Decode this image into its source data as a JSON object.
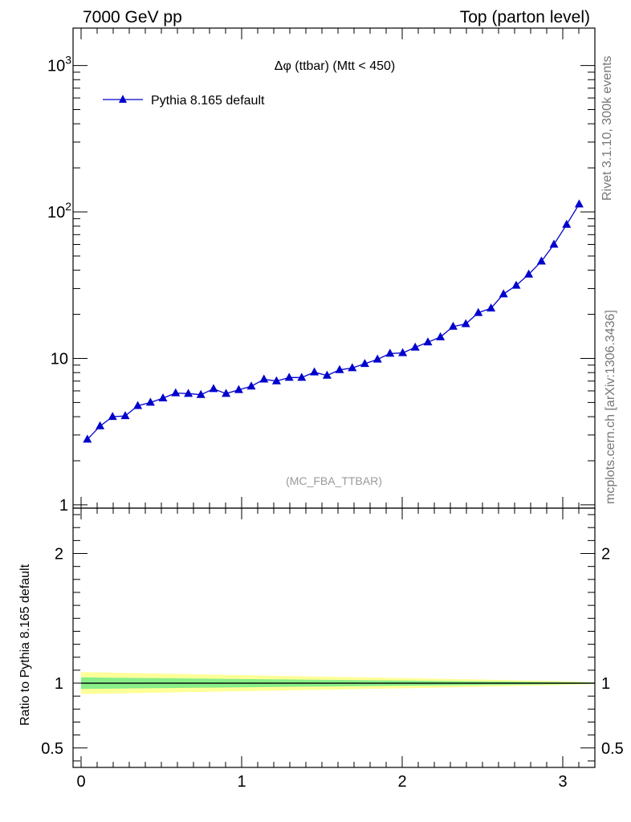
{
  "header": {
    "left": "7000 GeV pp",
    "right": "Top (parton level)"
  },
  "side_labels": {
    "rivet": "Rivet 3.1.10,  300k events",
    "mcplots": "mcplots.cern.ch [arXiv:1306.3436]"
  },
  "chart_data": {
    "type": "line",
    "title": "Δφ (ttbar) (Mtt < 450)",
    "analysis_label": "(MC_FBA_TTBAR)",
    "legend": {
      "label": "Pythia 8.165 default",
      "placement": "top-left"
    },
    "log_y": true,
    "xlim": [
      -0.05,
      3.2
    ],
    "ylim": [
      0.95,
      1800
    ],
    "y_ticks": [
      "1",
      "10",
      "10^2",
      "10^3"
    ],
    "x_ticks": [
      "0",
      "1",
      "2",
      "3"
    ],
    "color": "#0000cc",
    "series": [
      {
        "name": "Pythia 8.165 default",
        "x": [
          0.039,
          0.118,
          0.196,
          0.275,
          0.353,
          0.432,
          0.51,
          0.589,
          0.668,
          0.746,
          0.825,
          0.903,
          0.982,
          1.06,
          1.139,
          1.217,
          1.296,
          1.374,
          1.453,
          1.532,
          1.61,
          1.689,
          1.767,
          1.846,
          1.924,
          2.003,
          2.081,
          2.16,
          2.238,
          2.317,
          2.396,
          2.474,
          2.553,
          2.631,
          2.71,
          2.788,
          2.867,
          2.945,
          3.024,
          3.102
        ],
        "values": [
          2.8,
          3.45,
          4.0,
          4.05,
          4.75,
          5.0,
          5.35,
          5.8,
          5.75,
          5.65,
          6.2,
          5.75,
          6.1,
          6.45,
          7.2,
          7.0,
          7.4,
          7.4,
          8.05,
          7.65,
          8.35,
          8.6,
          9.2,
          9.85,
          10.8,
          10.9,
          11.9,
          12.9,
          14.0,
          16.5,
          17.2,
          20.5,
          22.0,
          27.5,
          31.5,
          37.5,
          46.0,
          60.0,
          82.0,
          113.0
        ]
      }
    ],
    "ratio_panel": {
      "ylabel": "Ratio to Pythia 8.165 default",
      "ylim": [
        0.35,
        2.35
      ],
      "y_ticks": [
        "0.5",
        "1",
        "2"
      ],
      "inner_band_color": "#88ee88",
      "outer_band_color": "#ffff99",
      "band_x": [
        0.0,
        1.0,
        2.0,
        3.0,
        3.2
      ],
      "inner_half_width": [
        0.045,
        0.032,
        0.02,
        0.008,
        0.004
      ],
      "outer_half_width": [
        0.085,
        0.062,
        0.04,
        0.015,
        0.006
      ]
    }
  }
}
